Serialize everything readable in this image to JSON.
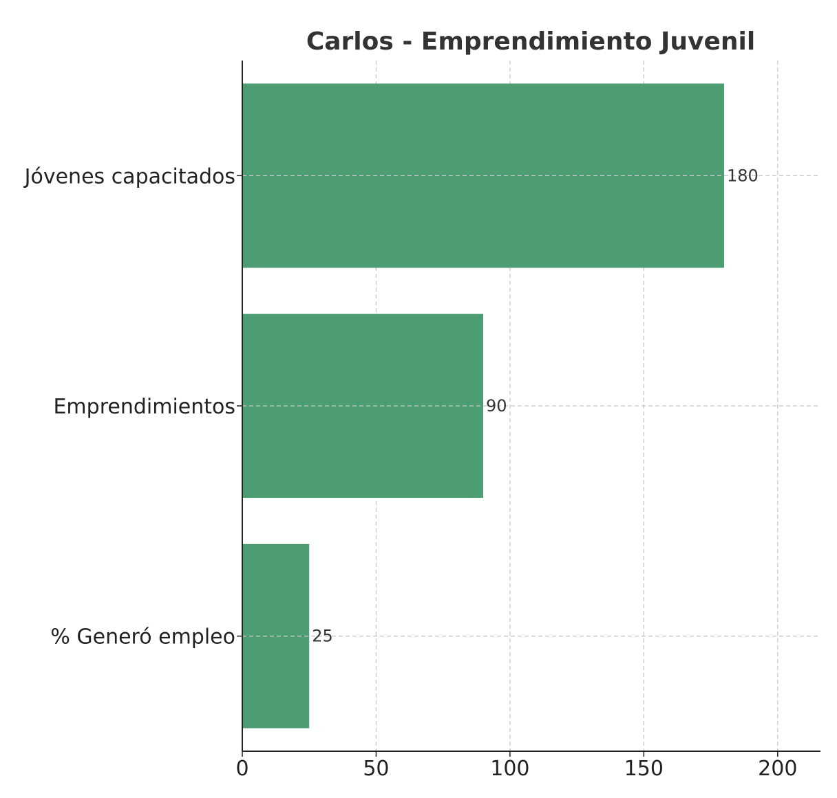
{
  "chart_data": {
    "type": "bar",
    "orientation": "horizontal",
    "title": "Carlos - Emprendimiento Juvenil",
    "categories": [
      "Jóvenes capacitados",
      "Emprendimientos",
      "% Generó empleo"
    ],
    "values": [
      180,
      90,
      25
    ],
    "data_labels": [
      "180",
      "90",
      "25"
    ],
    "xlabel": "",
    "ylabel": "",
    "xlim": [
      0,
      216
    ],
    "x_ticks": [
      0,
      50,
      100,
      150,
      200
    ],
    "x_tick_labels": [
      "0",
      "50",
      "100",
      "150",
      "200"
    ],
    "grid": true,
    "bar_color": "#4c9e72"
  }
}
